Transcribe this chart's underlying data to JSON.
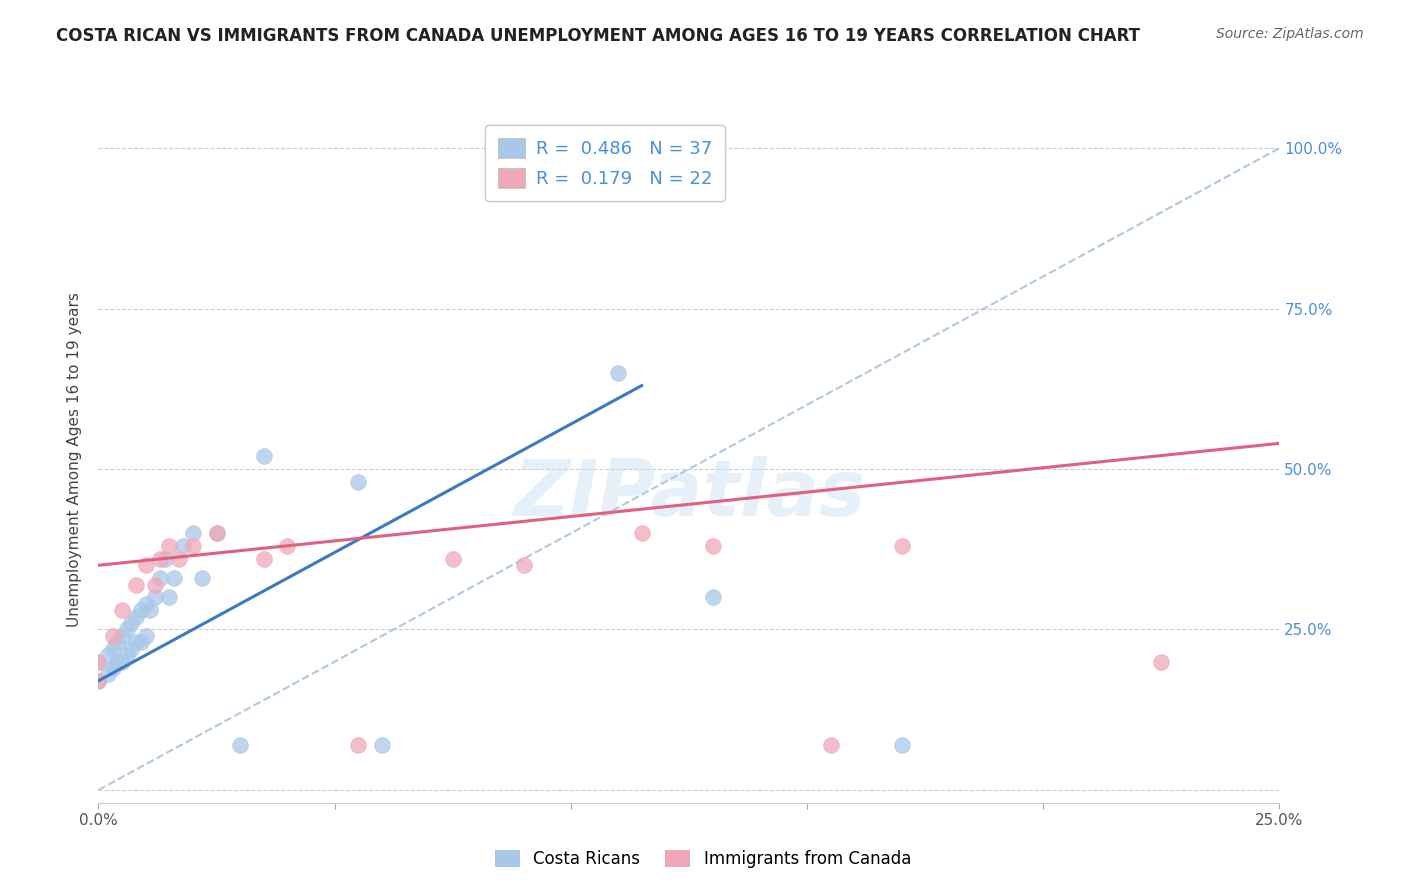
{
  "title": "COSTA RICAN VS IMMIGRANTS FROM CANADA UNEMPLOYMENT AMONG AGES 16 TO 19 YEARS CORRELATION CHART",
  "source": "Source: ZipAtlas.com",
  "ylabel": "Unemployment Among Ages 16 to 19 years",
  "xlim": [
    0.0,
    0.25
  ],
  "ylim": [
    -0.02,
    1.05
  ],
  "xticks": [
    0.0,
    0.05,
    0.1,
    0.15,
    0.2,
    0.25
  ],
  "xtick_labels": [
    "0.0%",
    "",
    "",
    "",
    "",
    "25.0%"
  ],
  "yticks": [
    0.0,
    0.25,
    0.5,
    0.75,
    1.0
  ],
  "right_ytick_labels": [
    "",
    "25.0%",
    "50.0%",
    "75.0%",
    "100.0%"
  ],
  "blue_color": "#a8c8e8",
  "pink_color": "#f0a8b8",
  "blue_line_color": "#3a7abf",
  "pink_line_color": "#e06080",
  "dashed_line_color": "#b0c8e0",
  "legend_blue_label": "R =  0.486   N = 37",
  "legend_pink_label": "R =  0.179   N = 22",
  "legend_blue_series": "Costa Ricans",
  "legend_pink_series": "Immigrants from Canada",
  "blue_scatter_x": [
    0.0,
    0.0,
    0.002,
    0.002,
    0.003,
    0.003,
    0.004,
    0.004,
    0.005,
    0.005,
    0.006,
    0.006,
    0.007,
    0.007,
    0.008,
    0.008,
    0.009,
    0.009,
    0.01,
    0.01,
    0.011,
    0.012,
    0.013,
    0.014,
    0.015,
    0.016,
    0.018,
    0.02,
    0.022,
    0.025,
    0.03,
    0.035,
    0.055,
    0.06,
    0.11,
    0.13,
    0.17
  ],
  "blue_scatter_y": [
    0.17,
    0.2,
    0.18,
    0.21,
    0.19,
    0.22,
    0.2,
    0.23,
    0.2,
    0.24,
    0.21,
    0.25,
    0.22,
    0.26,
    0.23,
    0.27,
    0.23,
    0.28,
    0.24,
    0.29,
    0.28,
    0.3,
    0.33,
    0.36,
    0.3,
    0.33,
    0.38,
    0.4,
    0.33,
    0.4,
    0.07,
    0.52,
    0.48,
    0.07,
    0.65,
    0.3,
    0.07
  ],
  "pink_scatter_x": [
    0.0,
    0.0,
    0.003,
    0.005,
    0.008,
    0.01,
    0.012,
    0.013,
    0.015,
    0.017,
    0.02,
    0.025,
    0.035,
    0.04,
    0.055,
    0.075,
    0.09,
    0.115,
    0.13,
    0.155,
    0.17,
    0.225
  ],
  "pink_scatter_y": [
    0.17,
    0.2,
    0.24,
    0.28,
    0.32,
    0.35,
    0.32,
    0.36,
    0.38,
    0.36,
    0.38,
    0.4,
    0.36,
    0.38,
    0.07,
    0.36,
    0.35,
    0.4,
    0.38,
    0.07,
    0.38,
    0.2
  ],
  "blue_line_x": [
    0.0,
    0.115
  ],
  "blue_line_y": [
    0.17,
    0.63
  ],
  "pink_line_x": [
    0.0,
    0.25
  ],
  "pink_line_y": [
    0.35,
    0.54
  ],
  "dash_line_x": [
    0.0,
    0.25
  ],
  "dash_line_y": [
    0.0,
    1.0
  ],
  "watermark": "ZIPatlas",
  "background_color": "#ffffff",
  "grid_color": "#cccccc",
  "title_color": "#222222",
  "source_color": "#666666",
  "ylabel_color": "#444444",
  "right_axis_color": "#4a90d9",
  "legend_text_color": "#4a90d9"
}
